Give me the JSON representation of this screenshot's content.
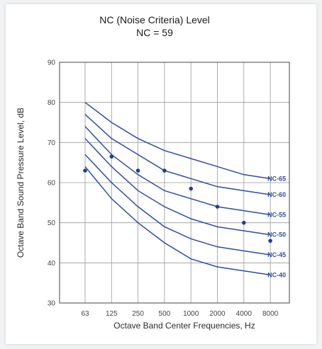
{
  "chart_data": {
    "type": "line",
    "title": "NC (Noise Criteria) Level",
    "subtitle": "NC = 59",
    "xlabel": "Octave Band Center Frequencies, Hz",
    "ylabel": "Octave Band Sound Pressure Level, dB",
    "categories": [
      "63",
      "125",
      "250",
      "500",
      "1000",
      "2000",
      "4000",
      "8000"
    ],
    "ylim": [
      30,
      90
    ],
    "yticks": [
      30,
      40,
      50,
      60,
      70,
      80,
      90
    ],
    "grid": true,
    "series": [
      {
        "name": "NC-65",
        "values": [
          80,
          75,
          71,
          68,
          66,
          64,
          62,
          61
        ]
      },
      {
        "name": "NC-60",
        "values": [
          77,
          71,
          67,
          63,
          61,
          59,
          58,
          57
        ]
      },
      {
        "name": "NC-55",
        "values": [
          74,
          67,
          62,
          58,
          56,
          54,
          53,
          52
        ]
      },
      {
        "name": "NC-50",
        "values": [
          71,
          64,
          58,
          54,
          51,
          49,
          48,
          47
        ]
      },
      {
        "name": "NC-45",
        "values": [
          67,
          60,
          54,
          49,
          46,
          44,
          43,
          42
        ]
      },
      {
        "name": "NC-40",
        "values": [
          64,
          56,
          50,
          45,
          41,
          39,
          38,
          37
        ]
      }
    ],
    "measured": {
      "values": [
        63,
        66.5,
        63,
        63,
        58.5,
        54,
        50,
        45.5
      ]
    },
    "colors": {
      "curve": "#2b4fa0",
      "point": "#1f3f8f",
      "grid": "#9a9a9a",
      "axis": "#444444"
    }
  }
}
